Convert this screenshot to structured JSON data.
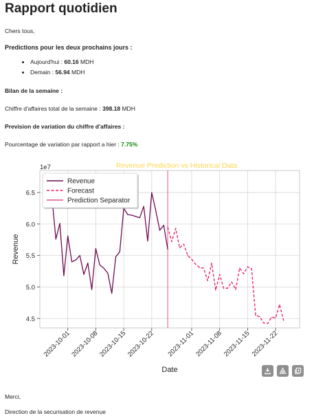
{
  "report": {
    "title": "Rapport quotidien",
    "greeting": "Chers tous,",
    "predictions_heading": "Predictions pour les deux prochains jours :",
    "today_label": "Aujourd'hui : ",
    "today_value": "60.16",
    "today_unit": " MDH",
    "tomorrow_label": "Demain : ",
    "tomorrow_value": "56.94",
    "tomorrow_unit": " MDH",
    "week_heading": "Bilan de la semaine :",
    "week_label": "Chiffre d'affaires total de la semaine : ",
    "week_value": "398.18",
    "week_unit": " MDH",
    "variation_heading": "Prevision de variation du chiffre d'affaires :",
    "variation_label": "Pourcentage de variation par rapport a hier : ",
    "variation_value": "7.75%",
    "closing": "Merci,",
    "signature": "Direction de la securisation de revenue"
  },
  "toolbar": {
    "download_icon": "download-icon",
    "image_icon": "image-icon",
    "copy_icon": "copy-icon"
  },
  "colors": {
    "revenue": "#6b0a52",
    "forecast": "#e6185f",
    "separator": "#e0508a",
    "title": "#ffd54f",
    "variation": "#0a8a0a"
  },
  "chart_data": {
    "type": "line",
    "title": "Revenue Prediction vs Historical Data",
    "xlabel": "Date",
    "ylabel": "Revenue",
    "y_scale_label": "1e7",
    "xlim": [
      "2023-09-24",
      "2023-11-28"
    ],
    "ylim": [
      4.35,
      6.85
    ],
    "yticks": [
      4.5,
      5.0,
      5.5,
      6.0,
      6.5
    ],
    "ytick_labels": [
      "4.5",
      "5.0",
      "5.5",
      "6.0",
      "6.5"
    ],
    "xticks": [
      "2023-10-01",
      "2023-10-08",
      "2023-10-15",
      "2023-10-22",
      "2023-11-01",
      "2023-11-08",
      "2023-11-15",
      "2023-11-22"
    ],
    "grid": true,
    "legend_position": "top-left",
    "series": [
      {
        "name": "Revenue",
        "style": "solid",
        "x": [
          "2023-09-27",
          "2023-09-28",
          "2023-09-29",
          "2023-09-30",
          "2023-10-01",
          "2023-10-02",
          "2023-10-03",
          "2023-10-04",
          "2023-10-05",
          "2023-10-06",
          "2023-10-07",
          "2023-10-08",
          "2023-10-09",
          "2023-10-10",
          "2023-10-11",
          "2023-10-12",
          "2023-10-13",
          "2023-10-14",
          "2023-10-15",
          "2023-10-16",
          "2023-10-17",
          "2023-10-18",
          "2023-10-19",
          "2023-10-20",
          "2023-10-21",
          "2023-10-22",
          "2023-10-23",
          "2023-10-24",
          "2023-10-25",
          "2023-10-26"
        ],
        "values": [
          6.45,
          5.76,
          6.01,
          5.18,
          5.81,
          5.4,
          5.43,
          5.5,
          5.2,
          5.38,
          4.96,
          5.61,
          5.35,
          5.3,
          5.22,
          4.9,
          5.48,
          5.56,
          6.25,
          6.15,
          6.14,
          6.12,
          6.1,
          6.28,
          5.73,
          6.5,
          6.22,
          5.9,
          5.98,
          5.6
        ]
      },
      {
        "name": "Forecast",
        "style": "dashed",
        "x": [
          "2023-10-26",
          "2023-10-27",
          "2023-10-28",
          "2023-10-29",
          "2023-10-30",
          "2023-10-31",
          "2023-11-01",
          "2023-11-02",
          "2023-11-03",
          "2023-11-04",
          "2023-11-05",
          "2023-11-06",
          "2023-11-07",
          "2023-11-08",
          "2023-11-09",
          "2023-11-10",
          "2023-11-11",
          "2023-11-12",
          "2023-11-13",
          "2023-11-14",
          "2023-11-15",
          "2023-11-16",
          "2023-11-17",
          "2023-11-18",
          "2023-11-19",
          "2023-11-20",
          "2023-11-21",
          "2023-11-22",
          "2023-11-23",
          "2023-11-24"
        ],
        "values": [
          5.95,
          5.72,
          5.93,
          5.62,
          5.68,
          5.5,
          5.44,
          5.36,
          5.31,
          5.3,
          5.1,
          5.38,
          4.95,
          5.2,
          4.98,
          4.98,
          5.08,
          4.96,
          5.3,
          5.21,
          5.32,
          5.29,
          4.55,
          4.53,
          4.43,
          4.42,
          4.52,
          4.51,
          4.72,
          4.47
        ]
      }
    ],
    "separator": {
      "name": "Prediction Separator",
      "x": "2023-10-26"
    }
  }
}
